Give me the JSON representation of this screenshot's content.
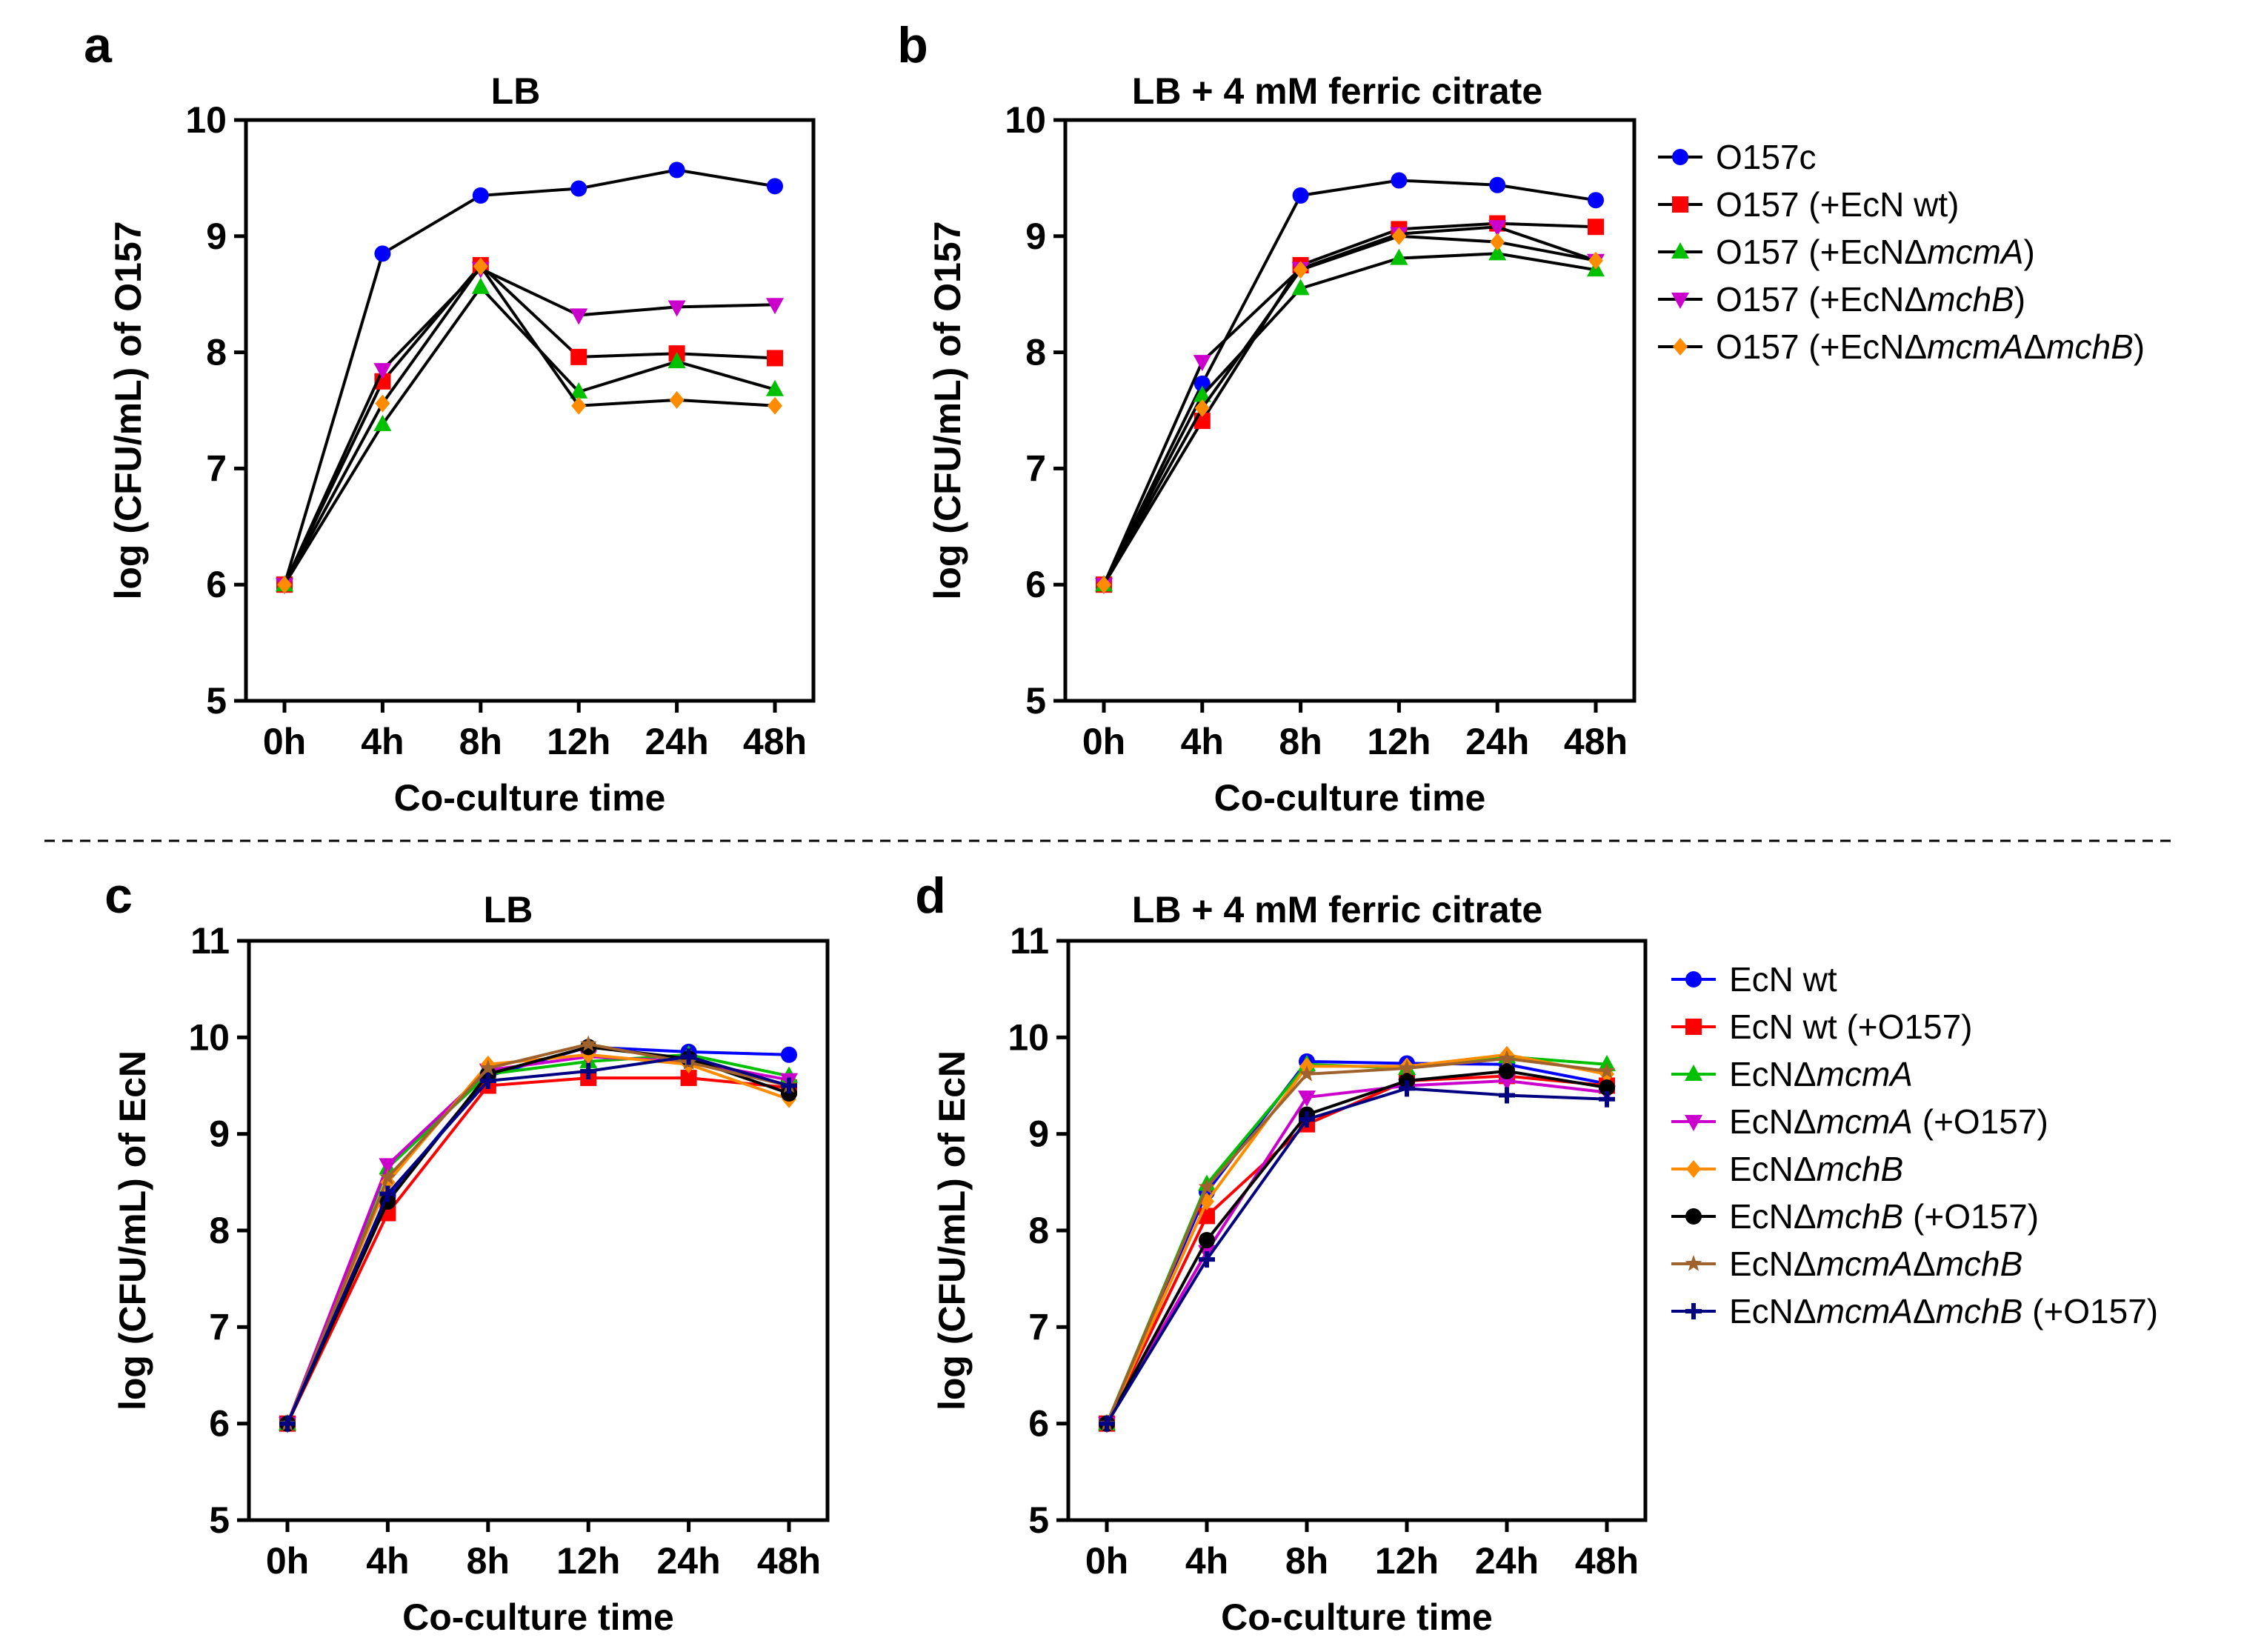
{
  "chart_data": [
    {
      "panel": "a",
      "type": "line",
      "title": "LB",
      "xlabel": "Co-culture time",
      "ylabel": "log (CFU/mL) of O157",
      "categories": [
        "0h",
        "4h",
        "8h",
        "12h",
        "24h",
        "48h"
      ],
      "ylim": [
        5,
        10
      ],
      "yticks": [
        5,
        6,
        7,
        8,
        9,
        10
      ],
      "series": [
        {
          "name": "O157c",
          "color": "#0000ff",
          "marker": "circle",
          "values": [
            6.0,
            8.85,
            9.35,
            9.41,
            9.57,
            9.43
          ]
        },
        {
          "name": "O157 (+EcN wt)",
          "color": "#ff0000",
          "marker": "square",
          "values": [
            6.0,
            7.75,
            8.75,
            7.96,
            7.99,
            7.95
          ]
        },
        {
          "name": "O157 (+EcNΔmcmA)",
          "color": "#00c000",
          "marker": "triangle-up",
          "values": [
            6.0,
            7.38,
            8.56,
            7.66,
            7.92,
            7.68
          ]
        },
        {
          "name": "O157 (+EcNΔmchB)",
          "color": "#cc00cc",
          "marker": "triangle-down",
          "values": [
            6.0,
            7.85,
            8.72,
            8.32,
            8.39,
            8.41
          ]
        },
        {
          "name": "O157 (+EcNΔmcmAΔmchB)",
          "color": "#ff8c00",
          "marker": "diamond",
          "values": [
            6.0,
            7.56,
            8.74,
            7.54,
            7.59,
            7.54
          ]
        }
      ]
    },
    {
      "panel": "b",
      "type": "line",
      "title": "LB + 4 mM ferric citrate",
      "xlabel": "Co-culture time",
      "ylabel": "log (CFU/mL) of O157",
      "categories": [
        "0h",
        "4h",
        "8h",
        "12h",
        "24h",
        "48h"
      ],
      "ylim": [
        5,
        10
      ],
      "yticks": [
        5,
        6,
        7,
        8,
        9,
        10
      ],
      "legend": {
        "position": "right",
        "entries": [
          {
            "parts": [
              {
                "t": "O157c",
                "i": false
              }
            ]
          },
          {
            "parts": [
              {
                "t": "O157 (+EcN wt)",
                "i": false
              }
            ]
          },
          {
            "parts": [
              {
                "t": "O157 (+EcNΔ",
                "i": false
              },
              {
                "t": "mcmA",
                "i": true
              },
              {
                "t": ")",
                "i": false
              }
            ]
          },
          {
            "parts": [
              {
                "t": "O157 (+EcNΔ",
                "i": false
              },
              {
                "t": "mchB",
                "i": true
              },
              {
                "t": ")",
                "i": false
              }
            ]
          },
          {
            "parts": [
              {
                "t": "O157 (+EcNΔ",
                "i": false
              },
              {
                "t": "mcmA",
                "i": true
              },
              {
                "t": "Δ",
                "i": false
              },
              {
                "t": "mchB",
                "i": true
              },
              {
                "t": ")",
                "i": false
              }
            ]
          }
        ]
      },
      "series": [
        {
          "name": "O157c",
          "color": "#0000ff",
          "marker": "circle",
          "values": [
            6.0,
            7.73,
            9.35,
            9.48,
            9.44,
            9.31
          ]
        },
        {
          "name": "O157 (+EcN wt)",
          "color": "#ff0000",
          "marker": "square",
          "values": [
            6.0,
            7.41,
            8.75,
            9.06,
            9.11,
            9.08
          ]
        },
        {
          "name": "O157 (+EcNΔmcmA)",
          "color": "#00c000",
          "marker": "triangle-up",
          "values": [
            6.0,
            7.63,
            8.55,
            8.81,
            8.85,
            8.71
          ]
        },
        {
          "name": "O157 (+EcNΔmchB)",
          "color": "#cc00cc",
          "marker": "triangle-down",
          "values": [
            6.0,
            7.92,
            8.72,
            9.02,
            9.08,
            8.79
          ]
        },
        {
          "name": "O157 (+EcNΔmcmAΔmchB)",
          "color": "#ff8c00",
          "marker": "diamond",
          "values": [
            6.0,
            7.52,
            8.71,
            9.0,
            8.95,
            8.79
          ]
        }
      ]
    },
    {
      "panel": "c",
      "type": "line",
      "title": "LB",
      "xlabel": "Co-culture time",
      "ylabel": "log (CFU/mL) of EcN",
      "categories": [
        "0h",
        "4h",
        "8h",
        "12h",
        "24h",
        "48h"
      ],
      "ylim": [
        5,
        11
      ],
      "yticks": [
        5,
        6,
        7,
        8,
        9,
        10,
        11
      ],
      "series": [
        {
          "name": "EcN wt",
          "color": "#0000ff",
          "marker": "circle",
          "values": [
            6.0,
            8.35,
            9.6,
            9.9,
            9.85,
            9.82
          ]
        },
        {
          "name": "EcN wt (+O157)",
          "color": "#ff0000",
          "marker": "square",
          "values": [
            6.0,
            8.18,
            9.5,
            9.58,
            9.58,
            9.48
          ]
        },
        {
          "name": "EcNΔmcmA",
          "color": "#00c000",
          "marker": "triangle-up",
          "values": [
            6.0,
            8.65,
            9.62,
            9.75,
            9.82,
            9.6
          ]
        },
        {
          "name": "EcNΔmcmA (+O157)",
          "color": "#cc00cc",
          "marker": "triangle-down",
          "values": [
            6.0,
            8.68,
            9.66,
            9.8,
            9.75,
            9.56
          ]
        },
        {
          "name": "EcNΔmchB",
          "color": "#ff8c00",
          "marker": "diamond",
          "values": [
            6.0,
            8.5,
            9.72,
            9.82,
            9.72,
            9.36
          ]
        },
        {
          "name": "EcNΔmchB (+O157)",
          "color": "#000000",
          "marker": "circle",
          "values": [
            6.0,
            8.3,
            9.62,
            9.9,
            9.78,
            9.42
          ]
        },
        {
          "name": "EcNΔmcmAΔmchB",
          "color": "#a0622d",
          "marker": "star",
          "values": [
            6.0,
            8.55,
            9.68,
            9.93,
            9.74,
            9.5
          ]
        },
        {
          "name": "EcNΔmcmAΔmchB (+O157)",
          "color": "#000080",
          "marker": "plus",
          "values": [
            6.0,
            8.38,
            9.55,
            9.65,
            9.8,
            9.5
          ]
        }
      ]
    },
    {
      "panel": "d",
      "type": "line",
      "title": "LB + 4 mM ferric citrate",
      "xlabel": "Co-culture time",
      "ylabel": "log (CFU/mL) of EcN",
      "categories": [
        "0h",
        "4h",
        "8h",
        "12h",
        "24h",
        "48h"
      ],
      "ylim": [
        5,
        11
      ],
      "yticks": [
        5,
        6,
        7,
        8,
        9,
        10,
        11
      ],
      "legend": {
        "position": "right",
        "entries": [
          {
            "parts": [
              {
                "t": "EcN wt",
                "i": false
              }
            ]
          },
          {
            "parts": [
              {
                "t": "EcN wt (+O157)",
                "i": false
              }
            ]
          },
          {
            "parts": [
              {
                "t": "EcNΔ",
                "i": false
              },
              {
                "t": "mcmA",
                "i": true
              }
            ]
          },
          {
            "parts": [
              {
                "t": "EcNΔ",
                "i": false
              },
              {
                "t": "mcmA",
                "i": true
              },
              {
                "t": " (+O157)",
                "i": false
              }
            ]
          },
          {
            "parts": [
              {
                "t": "EcNΔ",
                "i": false
              },
              {
                "t": "mchB",
                "i": true
              }
            ]
          },
          {
            "parts": [
              {
                "t": "EcNΔ",
                "i": false
              },
              {
                "t": "mchB",
                "i": true
              },
              {
                "t": " (+O157)",
                "i": false
              }
            ]
          },
          {
            "parts": [
              {
                "t": "EcNΔ",
                "i": false
              },
              {
                "t": "mcmA",
                "i": true
              },
              {
                "t": "Δ",
                "i": false
              },
              {
                "t": "mchB",
                "i": true
              }
            ]
          },
          {
            "parts": [
              {
                "t": "EcNΔ",
                "i": false
              },
              {
                "t": "mcmA",
                "i": true
              },
              {
                "t": "Δ",
                "i": false
              },
              {
                "t": "mchB",
                "i": true
              },
              {
                "t": " (+O157)",
                "i": false
              }
            ]
          }
        ]
      },
      "series": [
        {
          "name": "EcN wt",
          "color": "#0000ff",
          "marker": "circle",
          "values": [
            6.0,
            8.4,
            9.75,
            9.73,
            9.72,
            9.52
          ]
        },
        {
          "name": "EcN wt (+O157)",
          "color": "#ff0000",
          "marker": "square",
          "values": [
            6.0,
            8.15,
            9.1,
            9.55,
            9.6,
            9.5
          ]
        },
        {
          "name": "EcNΔmcmA",
          "color": "#00c000",
          "marker": "triangle-up",
          "values": [
            6.0,
            8.48,
            9.72,
            9.68,
            9.8,
            9.72
          ]
        },
        {
          "name": "EcNΔmcmA (+O157)",
          "color": "#cc00cc",
          "marker": "triangle-down",
          "values": [
            6.0,
            7.78,
            9.38,
            9.5,
            9.55,
            9.43
          ]
        },
        {
          "name": "EcNΔmchB",
          "color": "#ff8c00",
          "marker": "diamond",
          "values": [
            6.0,
            8.3,
            9.7,
            9.7,
            9.82,
            9.62
          ]
        },
        {
          "name": "EcNΔmchB (+O157)",
          "color": "#000000",
          "marker": "circle",
          "values": [
            6.0,
            7.9,
            9.2,
            9.55,
            9.65,
            9.48
          ]
        },
        {
          "name": "EcNΔmcmAΔmchB",
          "color": "#a0622d",
          "marker": "star",
          "values": [
            6.0,
            8.45,
            9.62,
            9.68,
            9.78,
            9.65
          ]
        },
        {
          "name": "EcNΔmcmAΔmchB (+O157)",
          "color": "#000080",
          "marker": "plus",
          "values": [
            6.0,
            7.7,
            9.15,
            9.47,
            9.4,
            9.36
          ]
        }
      ]
    }
  ]
}
